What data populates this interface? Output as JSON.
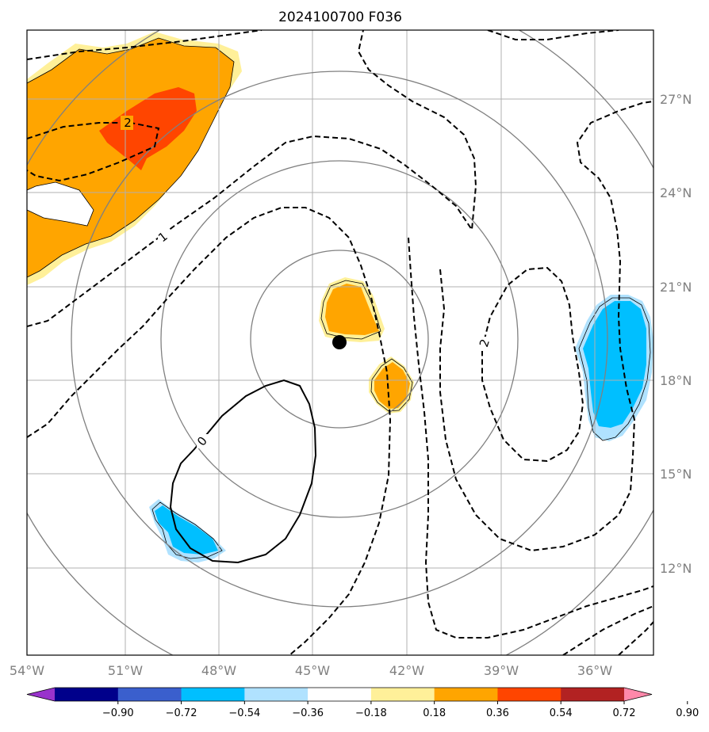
{
  "title": "2024100700 F036",
  "map": {
    "projection": "lon-lat",
    "lon_range": [
      -54.3,
      -35.3
    ],
    "lat_range": [
      9.5,
      29.7
    ],
    "gridlines": true,
    "lon_ticks": [
      "54°W",
      "51°W",
      "48°W",
      "45°W",
      "42°W",
      "39°W",
      "36°W"
    ],
    "lat_ticks": [
      "12°N",
      "15°N",
      "18°N",
      "21°N",
      "24°N",
      "27°N"
    ],
    "center_marker": {
      "lon": -44.0,
      "lat": 19.2,
      "symbol": "black-dot"
    },
    "range_rings": "concentric circles around center"
  },
  "contours": {
    "labels": [
      "2",
      "1",
      "2",
      "0"
    ],
    "style": "dashed = positive, solid = zero"
  },
  "colorbar": {
    "ticks": [
      "−0.90",
      "−0.72",
      "−0.54",
      "−0.36",
      "−0.18",
      "0.18",
      "0.36",
      "0.54",
      "0.72",
      "0.90"
    ],
    "colors": [
      "#9933cc",
      "#00008b",
      "#3a5fcd",
      "#00bfff",
      "#b0e2ff",
      "#ffffff",
      "#fff099",
      "#ffa500",
      "#ff4500",
      "#b22222",
      "#ff88aa"
    ],
    "extend": "both"
  },
  "chart_data": {
    "type": "heatmap",
    "title": "2024100700 F036",
    "x_ticks": [
      "54°W",
      "51°W",
      "48°W",
      "45°W",
      "42°W",
      "39°W",
      "36°W"
    ],
    "y_ticks": [
      "12°N",
      "15°N",
      "18°N",
      "21°N",
      "24°N",
      "27°N"
    ],
    "levels": [
      -0.9,
      -0.72,
      -0.54,
      -0.36,
      -0.18,
      0.18,
      0.36,
      0.54,
      0.72,
      0.9
    ],
    "grid": true
  }
}
